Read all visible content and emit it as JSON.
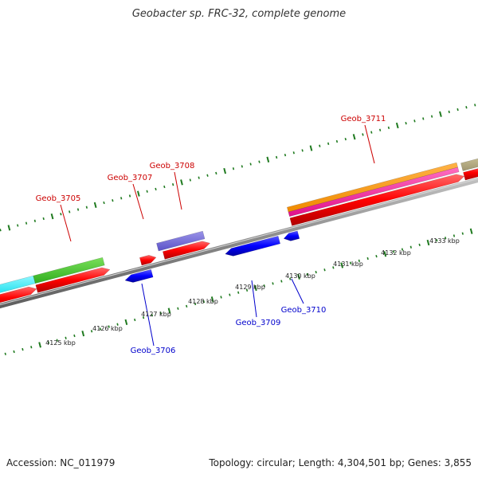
{
  "title": "Geobacter sp. FRC-32, complete genome",
  "footer": {
    "accession": "Accession: NC_011979",
    "info": "Topology: circular; Length: 4,304,501 bp; Genes: 3,855"
  },
  "colors": {
    "forward_label": "#cc0000",
    "reverse_label": "#0000cc",
    "tick": "#1f7a1f",
    "backbone": "#888888"
  },
  "scale_labels": [
    "4125 kbp",
    "4126 kbp",
    "4127 kbp",
    "4128 kbp",
    "4129 kbp",
    "4130 kbp",
    "4131 kbp",
    "4132 kbp",
    "4133 kbp"
  ],
  "gene_labels": {
    "forward": [
      "Geob_3705",
      "Geob_3707",
      "Geob_3708",
      "Geob_3711"
    ],
    "reverse": [
      "Geob_3706",
      "Geob_3709",
      "Geob_3710"
    ]
  }
}
